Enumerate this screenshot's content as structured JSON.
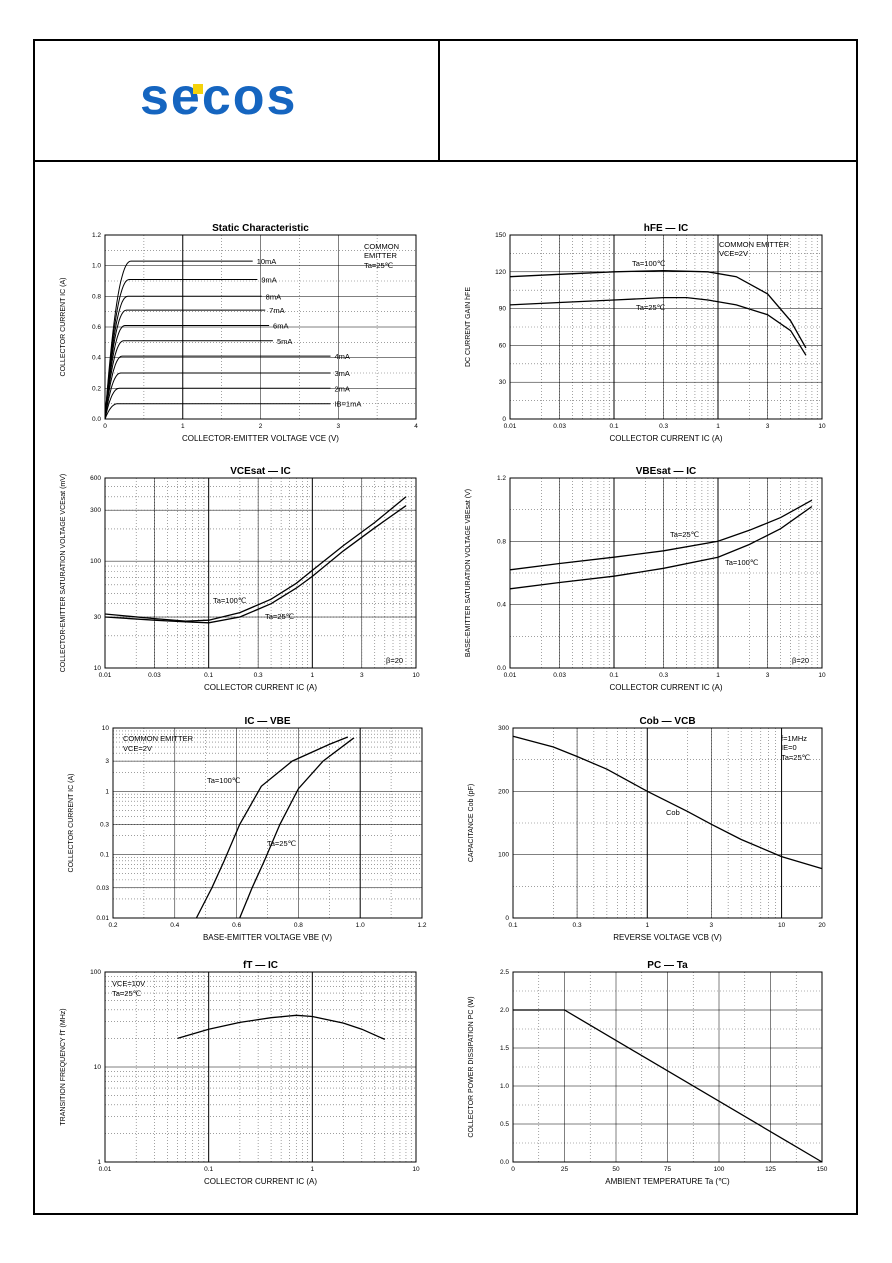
{
  "header": {
    "logo_text": "secos",
    "logo_colors": {
      "primary": "#1565c0",
      "accent": "#f4d20b"
    }
  },
  "chart_data": [
    {
      "id": "c1",
      "type": "line",
      "title": "Static Characteristic",
      "annotations": [
        "COMMON",
        "EMITTER",
        "Ta=25℃"
      ],
      "xlabel": "COLLECTOR-EMITTER VOLTAGE   VCE   (V)",
      "ylabel": "COLLECTOR CURRENT   IC   (A)",
      "xlim": [
        0,
        4
      ],
      "ylim": [
        0,
        1.2
      ],
      "xticks": [
        "0",
        "1",
        "2",
        "3",
        "4"
      ],
      "yticks": [
        "0.0",
        "0.2",
        "0.4",
        "0.6",
        "0.8",
        "1.0",
        "1.2"
      ],
      "series": [
        {
          "name": "10mA",
          "y": 1.03
        },
        {
          "name": "9mA",
          "y": 0.91
        },
        {
          "name": "8mA",
          "y": 0.8
        },
        {
          "name": "7mA",
          "y": 0.71
        },
        {
          "name": "6mA",
          "y": 0.61
        },
        {
          "name": "5mA",
          "y": 0.51
        },
        {
          "name": "4mA",
          "y": 0.41
        },
        {
          "name": "3mA",
          "y": 0.3
        },
        {
          "name": "2mA",
          "y": 0.2
        },
        {
          "name": "IB=1mA",
          "y": 0.1
        }
      ]
    },
    {
      "id": "c2",
      "type": "line",
      "title": "hFE  —  IC",
      "annotations": [
        "COMMON EMITTER",
        "VCE=2V"
      ],
      "xlabel": "COLLECTOR CURRENT   IC   (A)",
      "ylabel": "DC CURRENT GAIN   hFE",
      "xlim": [
        0.01,
        10
      ],
      "xscale": "log",
      "ylim": [
        0,
        150
      ],
      "xticks": [
        "0.01",
        "0.03",
        "0.1",
        "0.3",
        "1",
        "3",
        "10"
      ],
      "yticks": [
        "0",
        "30",
        "60",
        "90",
        "120",
        "150"
      ],
      "series": [
        {
          "name": "Ta=100℃",
          "x": [
            0.01,
            0.03,
            0.1,
            0.3,
            0.8,
            1.5,
            3,
            5,
            7
          ],
          "y": [
            116,
            118,
            120,
            121,
            120,
            116,
            102,
            80,
            58
          ]
        },
        {
          "name": "Ta=25℃",
          "x": [
            0.01,
            0.03,
            0.1,
            0.3,
            0.5,
            0.8,
            1.5,
            3,
            5,
            7
          ],
          "y": [
            93,
            95,
            97,
            99,
            99,
            97,
            93,
            85,
            72,
            52
          ]
        }
      ]
    },
    {
      "id": "c3",
      "type": "line",
      "title": "VCEsat  —  IC",
      "annotations": [
        "β=20"
      ],
      "xlabel": "COLLECTOR CURRENT   IC   (A)",
      "ylabel": "COLLECTOR-EMITTER SATURATION VOLTAGE   VCEsat   (mV)",
      "xlim": [
        0.01,
        10
      ],
      "xscale": "log",
      "ylim": [
        10,
        600
      ],
      "yscale": "log",
      "xticks": [
        "0.01",
        "0.03",
        "0.1",
        "0.3",
        "1",
        "3",
        "10"
      ],
      "yticks": [
        "10",
        "30",
        "100",
        "300",
        "600"
      ],
      "series": [
        {
          "name": "Ta=100℃",
          "x": [
            0.01,
            0.03,
            0.06,
            0.1,
            0.2,
            0.4,
            0.7,
            1,
            2,
            4,
            8
          ],
          "y": [
            32,
            29,
            27.5,
            28,
            33,
            44,
            62,
            82,
            140,
            230,
            400
          ]
        },
        {
          "name": "Ta=25℃",
          "x": [
            0.01,
            0.03,
            0.06,
            0.1,
            0.2,
            0.4,
            0.7,
            1,
            2,
            4,
            8
          ],
          "y": [
            30,
            28,
            27,
            26.5,
            30,
            40,
            56,
            72,
            125,
            205,
            330
          ]
        }
      ]
    },
    {
      "id": "c4",
      "type": "line",
      "title": "VBEsat  —  IC",
      "annotations": [
        "β=20"
      ],
      "xlabel": "COLLECTOR CURRENT   IC   (A)",
      "ylabel": "BASE-EMITTER SATURATION VOLTAGE   VBEsat   (V)",
      "xlim": [
        0.01,
        10
      ],
      "xscale": "log",
      "ylim": [
        0,
        1.2
      ],
      "xticks": [
        "0.01",
        "0.03",
        "0.1",
        "0.3",
        "1",
        "3",
        "10"
      ],
      "yticks": [
        "0.0",
        "0.4",
        "0.8",
        "1.2"
      ],
      "series": [
        {
          "name": "Ta=25℃",
          "x": [
            0.01,
            0.03,
            0.1,
            0.3,
            1,
            2,
            4,
            8
          ],
          "y": [
            0.62,
            0.66,
            0.7,
            0.74,
            0.8,
            0.87,
            0.95,
            1.06
          ]
        },
        {
          "name": "Ta=100℃",
          "x": [
            0.01,
            0.03,
            0.1,
            0.3,
            1,
            2,
            4,
            8
          ],
          "y": [
            0.5,
            0.54,
            0.58,
            0.63,
            0.7,
            0.78,
            0.88,
            1.02
          ]
        }
      ]
    },
    {
      "id": "c5",
      "type": "line",
      "title": "IC  —  VBE",
      "annotations": [
        "COMMON EMITTER",
        "VCE=2V"
      ],
      "xlabel": "BASE-EMITTER VOLTAGE   VBE   (V)",
      "ylabel": "COLLECTOR CURRENT   IC   (A)",
      "xlim": [
        0.2,
        1.2
      ],
      "ylim": [
        0.01,
        10
      ],
      "yscale": "log",
      "xticks": [
        "0.2",
        "0.4",
        "0.6",
        "0.8",
        "1.0",
        "1.2"
      ],
      "yticks": [
        "0.01",
        "0.03",
        "0.1",
        "0.3",
        "1",
        "3",
        "10"
      ],
      "series": [
        {
          "name": "Ta=100℃",
          "x": [
            0.47,
            0.52,
            0.56,
            0.61,
            0.68,
            0.78,
            0.9,
            0.96
          ],
          "y": [
            0.01,
            0.03,
            0.08,
            0.3,
            1.2,
            3,
            5.5,
            7.2
          ]
        },
        {
          "name": "Ta=25℃",
          "x": [
            0.61,
            0.65,
            0.69,
            0.74,
            0.8,
            0.88,
            0.98
          ],
          "y": [
            0.01,
            0.03,
            0.08,
            0.3,
            1.1,
            3,
            7
          ]
        }
      ]
    },
    {
      "id": "c6",
      "type": "line",
      "title": "Cob  —  VCB",
      "annotations": [
        "f=1MHz",
        "IE=0",
        "Ta=25℃",
        "Cob"
      ],
      "xlabel": "REVERSE VOLTAGE   VCB   (V)",
      "ylabel": "CAPACITANCE   Cob   (pF)",
      "xlim": [
        0.1,
        20
      ],
      "xscale": "log",
      "ylim": [
        0,
        300
      ],
      "xticks": [
        "0.1",
        "0.3",
        "1",
        "3",
        "10",
        "20"
      ],
      "yticks": [
        "0",
        "100",
        "200",
        "300"
      ],
      "series": [
        {
          "name": "Cob",
          "x": [
            0.1,
            0.2,
            0.3,
            0.5,
            1,
            2,
            3,
            5,
            10,
            20
          ],
          "y": [
            287,
            270,
            255,
            235,
            200,
            168,
            148,
            124,
            97,
            78
          ]
        }
      ]
    },
    {
      "id": "c7",
      "type": "line",
      "title": "fT  —  IC",
      "annotations": [
        "VCE=10V",
        "Ta=25℃"
      ],
      "xlabel": "COLLECTOR CURRENT   IC   (A)",
      "ylabel": "TRANSITION FREQUENCY   fT   (MHz)",
      "xlim": [
        0.01,
        10
      ],
      "xscale": "log",
      "ylim": [
        1,
        100
      ],
      "yscale": "log",
      "xticks": [
        "0.01",
        "0.1",
        "1",
        "10"
      ],
      "yticks": [
        "1",
        "10",
        "100"
      ],
      "series": [
        {
          "name": "fT",
          "x": [
            0.05,
            0.1,
            0.2,
            0.4,
            0.7,
            1,
            2,
            3,
            5
          ],
          "y": [
            20,
            25,
            29.5,
            33,
            35,
            34,
            29,
            25,
            19.5
          ]
        }
      ]
    },
    {
      "id": "c8",
      "type": "line",
      "title": "PC  —  Ta",
      "xlabel": "AMBIENT TEMPERATURE   Ta   (℃)",
      "ylabel": "COLLECTOR POWER DISSIPATION   PC   (W)",
      "xlim": [
        0,
        150
      ],
      "ylim": [
        0,
        2.5
      ],
      "xticks": [
        "0",
        "25",
        "50",
        "75",
        "100",
        "125",
        "150"
      ],
      "yticks": [
        "0.0",
        "0.5",
        "1.0",
        "1.5",
        "2.0",
        "2.5"
      ],
      "series": [
        {
          "name": "PC",
          "x": [
            0,
            25,
            150
          ],
          "y": [
            2.0,
            2.0,
            0
          ]
        }
      ]
    }
  ]
}
